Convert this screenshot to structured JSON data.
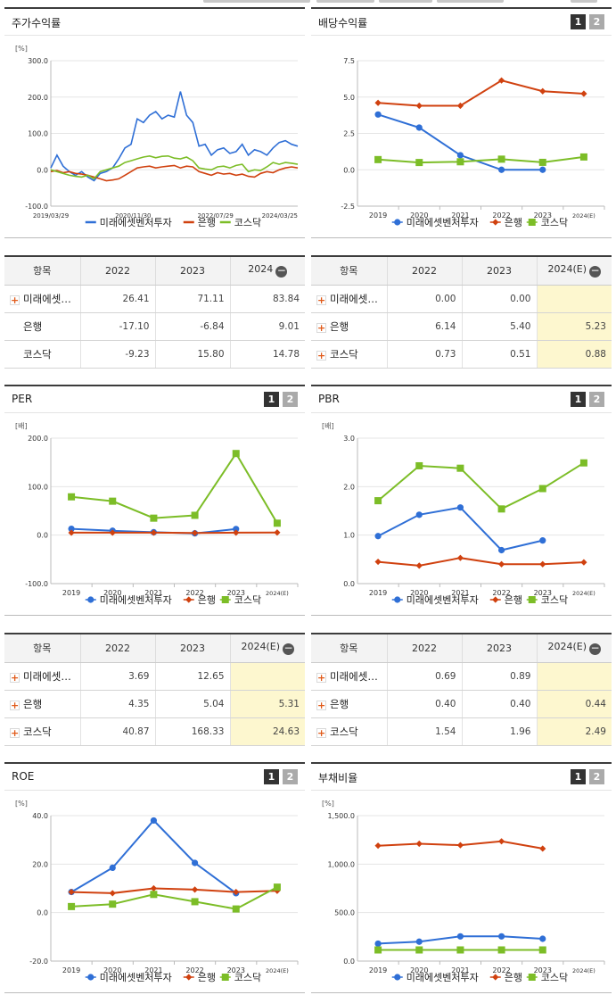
{
  "legend_names": {
    "s1": "미래에셋벤처투자",
    "s2": "은행",
    "s3": "코스닥"
  },
  "colors": {
    "s1": "#2f6fd6",
    "s2": "#d0410f",
    "s3": "#7cbd27"
  },
  "panels": {
    "stock": {
      "title": "주가수익률",
      "unit": "[%]"
    },
    "dividend": {
      "title": "배당수익률",
      "unit": "",
      "btn1": "1",
      "btn2": "2"
    },
    "per": {
      "title": "PER",
      "unit": "[배]",
      "btn1": "1",
      "btn2": "2"
    },
    "pbr": {
      "title": "PBR",
      "unit": "[배]",
      "btn1": "1",
      "btn2": "2"
    },
    "roe": {
      "title": "ROE",
      "unit": "[%]",
      "btn1": "1",
      "btn2": "2"
    },
    "debt": {
      "title": "부채비율",
      "unit": "[%]",
      "btn1": "1",
      "btn2": "2"
    }
  },
  "chart_data": [
    {
      "id": "stock",
      "type": "line",
      "title": "주가수익률",
      "ylabel": "[%]",
      "ylim": [
        -100,
        300
      ],
      "yticks": [
        "300.0",
        "200.0",
        "100.0",
        "0.0",
        "-100.0"
      ],
      "x_tick_labels": [
        "2019/03/29",
        "2020/11/30",
        "2022/07/29",
        "2024/03/25"
      ],
      "series": [
        {
          "name": "미래에셋벤처투자",
          "values": [
            5,
            40,
            10,
            -5,
            -15,
            -5,
            -20,
            -30,
            -10,
            -5,
            5,
            30,
            60,
            70,
            140,
            130,
            150,
            160,
            140,
            150,
            145,
            215,
            150,
            130,
            65,
            70,
            40,
            55,
            60,
            45,
            50,
            70,
            40,
            55,
            50,
            40,
            60,
            75,
            80,
            70,
            65
          ]
        },
        {
          "name": "은행",
          "values": [
            -5,
            -2,
            -8,
            -5,
            -10,
            -12,
            -15,
            -20,
            -25,
            -30,
            -28,
            -25,
            -15,
            -5,
            5,
            8,
            10,
            5,
            8,
            10,
            12,
            5,
            10,
            8,
            -5,
            -10,
            -15,
            -8,
            -12,
            -10,
            -15,
            -12,
            -18,
            -20,
            -10,
            -5,
            -8,
            0,
            5,
            8,
            5
          ]
        },
        {
          "name": "코스닥",
          "values": [
            0,
            -5,
            -10,
            -15,
            -18,
            -20,
            -15,
            -25,
            -5,
            0,
            5,
            10,
            20,
            25,
            30,
            35,
            38,
            33,
            37,
            38,
            32,
            30,
            35,
            25,
            5,
            2,
            0,
            8,
            10,
            5,
            12,
            15,
            -5,
            0,
            -2,
            8,
            20,
            15,
            20,
            18,
            15
          ]
        }
      ]
    },
    {
      "id": "dividend",
      "type": "line",
      "title": "배당수익률",
      "ylabel": "",
      "ylim": [
        -2.5,
        7.5
      ],
      "yticks": [
        "7.5",
        "5.0",
        "2.5",
        "0.0",
        "-2.5"
      ],
      "categories": [
        "2019",
        "2020",
        "2021",
        "2022",
        "2023",
        "2024(E)"
      ],
      "series": [
        {
          "name": "미래에셋벤처투자",
          "values": [
            3.8,
            2.9,
            1.0,
            0.0,
            0.0,
            null
          ]
        },
        {
          "name": "은행",
          "values": [
            4.6,
            4.4,
            4.4,
            6.14,
            5.4,
            5.23
          ]
        },
        {
          "name": "코스닥",
          "values": [
            0.7,
            0.5,
            0.55,
            0.73,
            0.51,
            0.88
          ]
        }
      ]
    },
    {
      "id": "per",
      "type": "line",
      "title": "PER",
      "ylabel": "[배]",
      "ylim": [
        -100,
        200
      ],
      "yticks": [
        "200.0",
        "100.0",
        "0.0",
        "-100.0"
      ],
      "categories": [
        "2019",
        "2020",
        "2021",
        "2022",
        "2023",
        "2024(E)"
      ],
      "series": [
        {
          "name": "미래에셋벤처투자",
          "values": [
            13,
            9,
            6,
            3.69,
            12.65,
            null
          ]
        },
        {
          "name": "은행",
          "values": [
            5,
            5,
            5,
            4.35,
            5.04,
            5.31
          ]
        },
        {
          "name": "코스닥",
          "values": [
            79,
            70,
            35,
            40.87,
            168.33,
            24.63
          ]
        }
      ]
    },
    {
      "id": "pbr",
      "type": "line",
      "title": "PBR",
      "ylabel": "[배]",
      "ylim": [
        0,
        3
      ],
      "yticks": [
        "3.0",
        "2.0",
        "1.0",
        "0.0"
      ],
      "categories": [
        "2019",
        "2020",
        "2021",
        "2022",
        "2023",
        "2024(E)"
      ],
      "series": [
        {
          "name": "미래에셋벤처투자",
          "values": [
            0.98,
            1.42,
            1.57,
            0.69,
            0.89,
            null
          ]
        },
        {
          "name": "은행",
          "values": [
            0.45,
            0.37,
            0.53,
            0.4,
            0.4,
            0.44
          ]
        },
        {
          "name": "코스닥",
          "values": [
            1.71,
            2.43,
            2.38,
            1.54,
            1.96,
            2.49
          ]
        }
      ]
    },
    {
      "id": "roe",
      "type": "line",
      "title": "ROE",
      "ylabel": "[%]",
      "ylim": [
        -20,
        40
      ],
      "yticks": [
        "40.0",
        "20.0",
        "0.0",
        "-20.0"
      ],
      "categories": [
        "2019",
        "2020",
        "2021",
        "2022",
        "2023",
        "2024(E)"
      ],
      "series": [
        {
          "name": "미래에셋벤처투자",
          "values": [
            8.5,
            18.5,
            38,
            20.5,
            8,
            null
          ]
        },
        {
          "name": "은행",
          "values": [
            8.5,
            8,
            10,
            9.5,
            8.5,
            9
          ]
        },
        {
          "name": "코스닥",
          "values": [
            2.5,
            3.5,
            7.5,
            4.5,
            1.5,
            10.5
          ]
        }
      ]
    },
    {
      "id": "debt",
      "type": "line",
      "title": "부채비율",
      "ylabel": "[%]",
      "ylim": [
        0,
        1500
      ],
      "yticks": [
        "1,500.0",
        "1,000.0",
        "500.0",
        "0.0"
      ],
      "categories": [
        "2019",
        "2020",
        "2021",
        "2022",
        "2023",
        "2024(E)"
      ],
      "series": [
        {
          "name": "미래에셋벤처투자",
          "values": [
            180,
            200,
            255,
            255,
            230,
            null
          ]
        },
        {
          "name": "은행",
          "values": [
            1190,
            1210,
            1195,
            1235,
            1160,
            null
          ]
        },
        {
          "name": "코스닥",
          "values": [
            115,
            115,
            115,
            115,
            115,
            null
          ]
        }
      ]
    }
  ],
  "tables": {
    "stock": {
      "header": [
        "항목",
        "2022",
        "2023",
        "2024"
      ],
      "rows": [
        {
          "label": "미래에셋…",
          "values": [
            "26.41",
            "71.11",
            "83.84"
          ]
        },
        {
          "label": "은행",
          "values": [
            "-17.10",
            "-6.84",
            "9.01"
          ]
        },
        {
          "label": "코스닥",
          "values": [
            "-9.23",
            "15.80",
            "14.78"
          ]
        }
      ]
    },
    "dividend": {
      "header": [
        "항목",
        "2022",
        "2023",
        "2024(E)"
      ],
      "rows": [
        {
          "label": "미래에셋…",
          "values": [
            "0.00",
            "0.00",
            ""
          ]
        },
        {
          "label": "은행",
          "values": [
            "6.14",
            "5.40",
            "5.23"
          ]
        },
        {
          "label": "코스닥",
          "values": [
            "0.73",
            "0.51",
            "0.88"
          ]
        }
      ]
    },
    "per": {
      "header": [
        "항목",
        "2022",
        "2023",
        "2024(E)"
      ],
      "rows": [
        {
          "label": "미래에셋…",
          "values": [
            "3.69",
            "12.65",
            ""
          ]
        },
        {
          "label": "은행",
          "values": [
            "4.35",
            "5.04",
            "5.31"
          ]
        },
        {
          "label": "코스닥",
          "values": [
            "40.87",
            "168.33",
            "24.63"
          ]
        }
      ]
    },
    "pbr": {
      "header": [
        "항목",
        "2022",
        "2023",
        "2024(E)"
      ],
      "rows": [
        {
          "label": "미래에셋…",
          "values": [
            "0.69",
            "0.89",
            ""
          ]
        },
        {
          "label": "은행",
          "values": [
            "0.40",
            "0.40",
            "0.44"
          ]
        },
        {
          "label": "코스닥",
          "values": [
            "1.54",
            "1.96",
            "2.49"
          ]
        }
      ]
    }
  }
}
